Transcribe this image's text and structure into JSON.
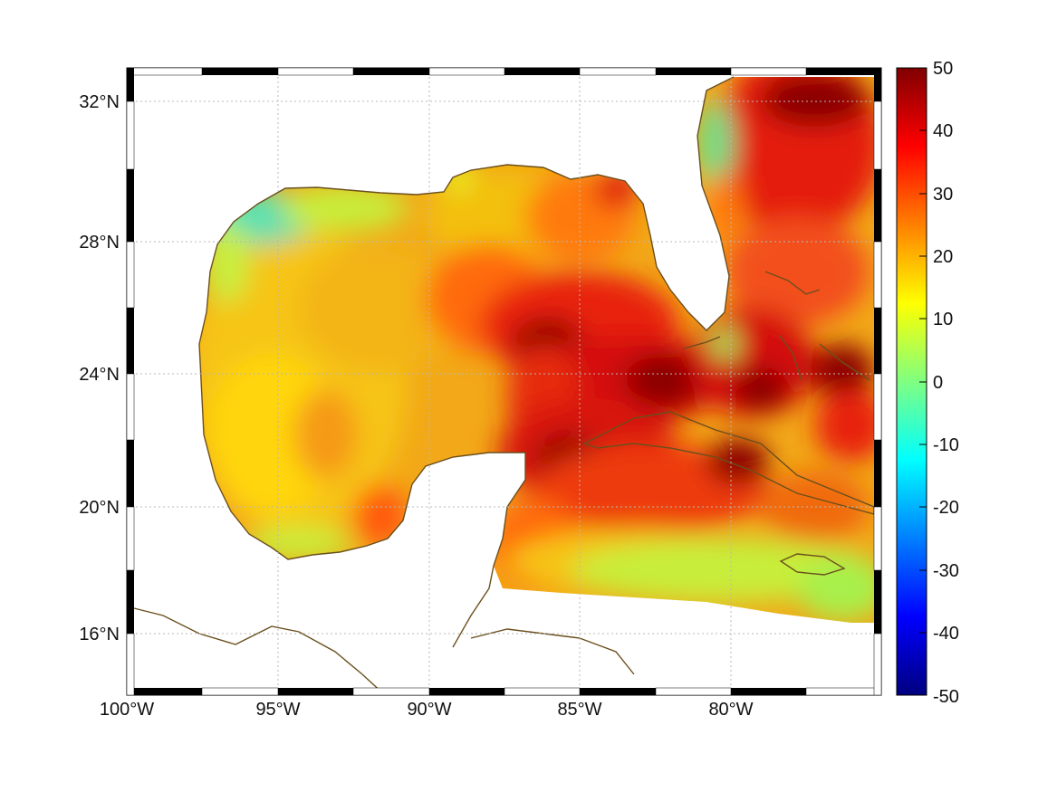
{
  "map": {
    "lon_labels": [
      "100°W",
      "95°W",
      "90°W",
      "85°W",
      "80°W"
    ],
    "lat_labels": [
      "32°N",
      "28°N",
      "24°N",
      "20°N",
      "16°N"
    ],
    "colors": {
      "land_fill": "#ffffff",
      "coastline": "#6b4f1d",
      "grid": "#b0b0b0",
      "frame_dark": "#000000",
      "frame_light": "#ffffff"
    }
  },
  "colorbar": {
    "tick_labels": [
      "50",
      "40",
      "30",
      "20",
      "10",
      "0",
      "-10",
      "-20",
      "-30",
      "-40",
      "-50"
    ],
    "range": [
      -50,
      50
    ],
    "colormap": "jet"
  }
}
